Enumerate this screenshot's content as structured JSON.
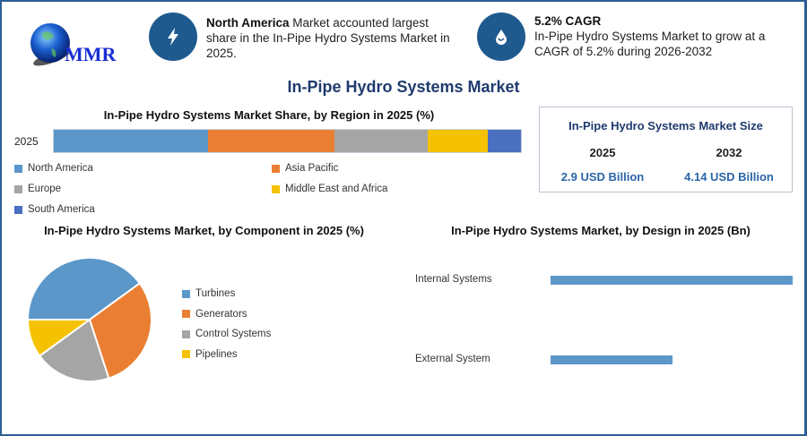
{
  "logo": {
    "text": "MMR"
  },
  "info1": {
    "bold": "North America",
    "text": " Market accounted largest share in the In-Pipe Hydro Systems Market in 2025.",
    "icon": "lightning-icon"
  },
  "info2": {
    "bold": "5.2% CAGR",
    "text": "In-Pipe Hydro Systems Market to grow at a CAGR of 5.2% during 2026-2032",
    "icon": "water-drop-icon"
  },
  "main_title": "In-Pipe Hydro Systems Market",
  "size_box": {
    "title": "In-Pipe Hydro Systems Market Size",
    "years": [
      "2025",
      "2032"
    ],
    "values": [
      "2.9 USD Billion",
      "4.14 USD Billion"
    ]
  },
  "colors": {
    "blue": "#5b97c9",
    "orange": "#ea7f33",
    "gray": "#a5a5a5",
    "yellow": "#f4c200",
    "darkblue": "#4a6fbf",
    "title": "#1f3a6e",
    "accent": "#1e5a8e",
    "value": "#2a64a8"
  },
  "chart_data": [
    {
      "type": "bar",
      "stacked": true,
      "orientation": "horizontal",
      "title": "In-Pipe Hydro Systems Market Share, by Region in 2025 (%)",
      "categories": [
        "2025"
      ],
      "series": [
        {
          "name": "North America",
          "values": [
            33
          ]
        },
        {
          "name": "Asia Pacific",
          "values": [
            27
          ]
        },
        {
          "name": "Europe",
          "values": [
            20
          ]
        },
        {
          "name": "Middle East and Africa",
          "values": [
            13
          ]
        },
        {
          "name": "South America",
          "values": [
            7
          ]
        }
      ],
      "legend": "bottom"
    },
    {
      "type": "pie",
      "title": "In-Pipe Hydro Systems Market, by Component in 2025 (%)",
      "labels": [
        "Turbines",
        "Generators",
        "Control Systems",
        "Pipelines"
      ],
      "values": [
        40,
        30,
        20,
        10
      ],
      "legend": "right"
    },
    {
      "type": "bar",
      "orientation": "horizontal",
      "title": "In-Pipe Hydro Systems Market, by Design in 2025 (Bn)",
      "categories": [
        "Internal Systems",
        "External System"
      ],
      "values": [
        1.93,
        0.97
      ]
    }
  ]
}
